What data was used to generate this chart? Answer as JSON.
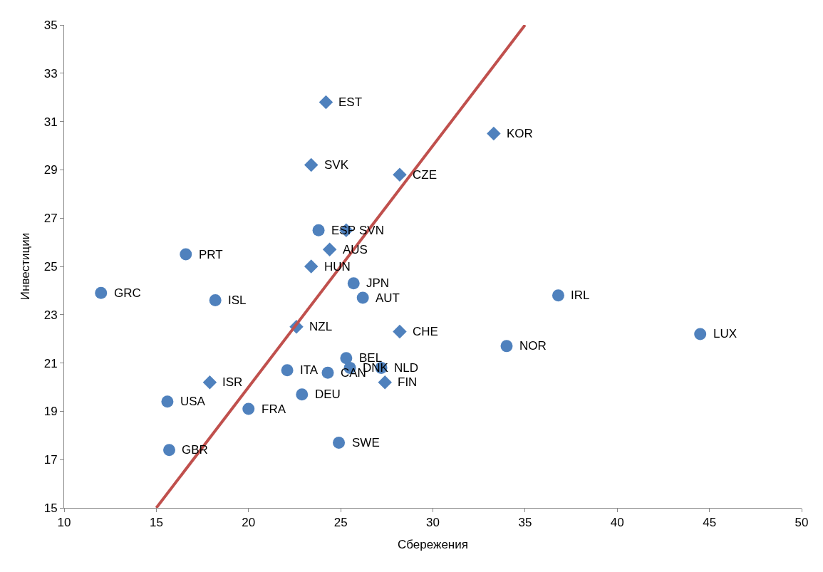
{
  "chart_data": {
    "type": "scatter",
    "xlabel": "Сбережения",
    "ylabel": "Инвестиции",
    "xlim": [
      10,
      50
    ],
    "xticks": [
      10,
      15,
      20,
      25,
      30,
      35,
      40,
      45,
      50
    ],
    "ylim": [
      15,
      35
    ],
    "yticks": [
      15,
      17,
      19,
      21,
      23,
      25,
      27,
      29,
      31,
      33,
      35
    ],
    "series": [
      {
        "marker": "circle",
        "color": "#4f81bd",
        "x": [
          12.0,
          16.6,
          18.2,
          15.6,
          15.7,
          20.0,
          22.1,
          22.9,
          23.8,
          25.7,
          26.2,
          25.3,
          24.3,
          25.5,
          27.2,
          24.9,
          36.8,
          34.0,
          44.5
        ],
        "values": [
          23.9,
          25.5,
          23.6,
          19.4,
          17.4,
          19.1,
          20.7,
          19.7,
          26.5,
          24.3,
          23.7,
          21.2,
          20.6,
          20.8,
          20.8,
          17.7,
          23.8,
          21.7,
          22.2
        ]
      },
      {
        "marker": "diamond",
        "color": "#4f81bd",
        "x": [
          24.2,
          33.3,
          23.4,
          28.2,
          25.3,
          24.4,
          23.4,
          22.6,
          28.2,
          27.4,
          17.9
        ],
        "values": [
          31.8,
          30.5,
          29.2,
          28.8,
          26.5,
          25.7,
          25.0,
          22.5,
          22.3,
          20.2,
          20.2
        ]
      },
      {
        "type": "line",
        "color": "#c0504d",
        "x": [
          15,
          35
        ],
        "values": [
          15,
          35
        ]
      }
    ],
    "annotations": [
      {
        "text": "GRC",
        "x": 12.0,
        "y": 23.9
      },
      {
        "text": "PRT",
        "x": 16.6,
        "y": 25.5
      },
      {
        "text": "ISL",
        "x": 18.2,
        "y": 23.6
      },
      {
        "text": "USA",
        "x": 15.6,
        "y": 19.4
      },
      {
        "text": "GBR",
        "x": 15.7,
        "y": 17.4
      },
      {
        "text": "FRA",
        "x": 20.0,
        "y": 19.1
      },
      {
        "text": "ITA",
        "x": 22.1,
        "y": 20.7
      },
      {
        "text": "DEU",
        "x": 22.9,
        "y": 19.7
      },
      {
        "text": "ESP",
        "x": 23.8,
        "y": 26.5
      },
      {
        "text": "JPN",
        "x": 25.7,
        "y": 24.3
      },
      {
        "text": "AUT",
        "x": 26.2,
        "y": 23.7
      },
      {
        "text": "BEL",
        "x": 25.3,
        "y": 21.2
      },
      {
        "text": "CAN",
        "x": 24.3,
        "y": 20.6
      },
      {
        "text": "DNK",
        "x": 25.5,
        "y": 20.8
      },
      {
        "text": "NLD",
        "x": 27.2,
        "y": 20.8
      },
      {
        "text": "SWE",
        "x": 24.9,
        "y": 17.7
      },
      {
        "text": "IRL",
        "x": 36.8,
        "y": 23.8
      },
      {
        "text": "NOR",
        "x": 34.0,
        "y": 21.7
      },
      {
        "text": "LUX",
        "x": 44.5,
        "y": 22.2
      },
      {
        "text": "EST",
        "x": 24.2,
        "y": 31.8
      },
      {
        "text": "KOR",
        "x": 33.3,
        "y": 30.5
      },
      {
        "text": "SVK",
        "x": 23.4,
        "y": 29.2
      },
      {
        "text": "CZE",
        "x": 28.2,
        "y": 28.8
      },
      {
        "text": "SVN",
        "x": 25.3,
        "y": 26.5
      },
      {
        "text": "AUS",
        "x": 24.4,
        "y": 25.7
      },
      {
        "text": "HUN",
        "x": 23.4,
        "y": 25.0
      },
      {
        "text": "NZL",
        "x": 22.6,
        "y": 22.5
      },
      {
        "text": "CHE",
        "x": 28.2,
        "y": 22.3
      },
      {
        "text": "FIN",
        "x": 27.4,
        "y": 20.2
      },
      {
        "text": "ISR",
        "x": 17.9,
        "y": 20.2
      }
    ]
  }
}
